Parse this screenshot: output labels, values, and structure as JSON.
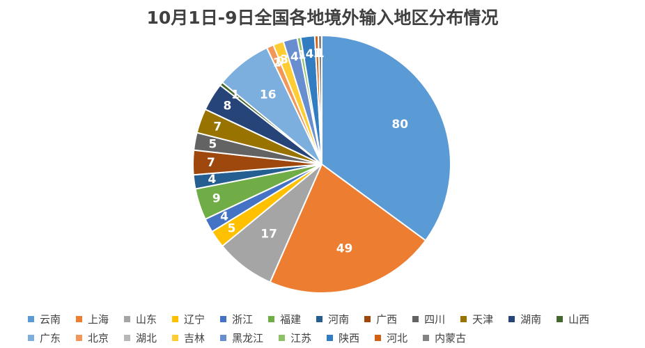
{
  "chart_data": {
    "type": "pie",
    "title": "10月1日-9日全国各地境外输入地区分布情况",
    "categories": [
      "云南",
      "上海",
      "山东",
      "辽宁",
      "浙江",
      "福建",
      "河南",
      "广西",
      "四川",
      "天津",
      "湖南",
      "山西",
      "广东",
      "北京",
      "湖北",
      "吉林",
      "黑龙江",
      "江苏",
      "陕西",
      "河北",
      "内蒙古"
    ],
    "values": [
      80,
      49,
      17,
      5,
      4,
      9,
      4,
      7,
      5,
      7,
      8,
      1,
      16,
      2,
      0,
      3,
      4,
      1,
      4,
      1,
      1
    ],
    "colors": [
      "#5B9BD5",
      "#ED7D31",
      "#A5A5A5",
      "#FFC000",
      "#4472C4",
      "#70AD47",
      "#255E91",
      "#9E480E",
      "#636363",
      "#997300",
      "#264478",
      "#43682B",
      "#7CAFDD",
      "#F1975A",
      "#B7B7B7",
      "#FFCD33",
      "#698ED0",
      "#8CC168",
      "#327DC2",
      "#D26012",
      "#848484"
    ],
    "legend_position": "bottom"
  }
}
